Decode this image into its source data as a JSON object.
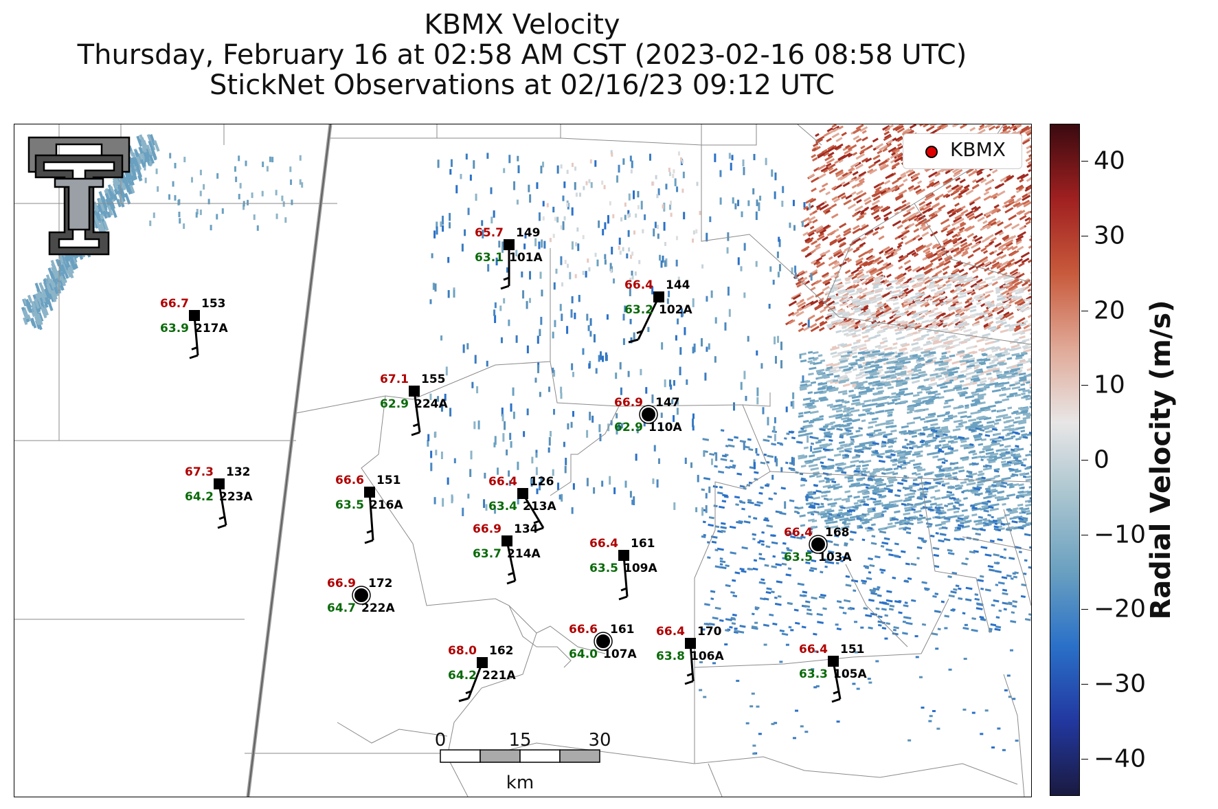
{
  "title": {
    "line1": "KBMX Velocity",
    "line2": "Thursday, February 16 at 02:58 AM CST (2023-02-16 08:58 UTC)",
    "line3": "StickNet Observations at 02/16/23 09:12 UTC"
  },
  "legend": {
    "label": "KBMX",
    "marker_color": "#e00000"
  },
  "logo": {
    "icon": "texas-tech-double-t-logo"
  },
  "colorbar": {
    "title": "Radial Velocity (m/s)",
    "range": [
      -45,
      45
    ],
    "ticks": [
      "40",
      "30",
      "20",
      "10",
      "0",
      "−10",
      "−20",
      "−30",
      "−40"
    ],
    "tick_values": [
      40,
      30,
      20,
      10,
      0,
      -10,
      -20,
      -30,
      -40
    ],
    "colors": [
      "#1a1a40",
      "#2238a0",
      "#2a70c8",
      "#6aa0c0",
      "#a8c4cf",
      "#e8e6e6",
      "#e0a896",
      "#c85a3c",
      "#a02020",
      "#3a0a10"
    ]
  },
  "scale_bar": {
    "labels": [
      "0",
      "15",
      "30"
    ],
    "unit": "km"
  },
  "stations": [
    {
      "id": "101A",
      "temp": "65.7",
      "dew": "63.1",
      "dir": "149",
      "symbol": "square"
    },
    {
      "id": "102A",
      "temp": "66.4",
      "dew": "63.2",
      "dir": "144",
      "symbol": "square"
    },
    {
      "id": "217A",
      "temp": "66.7",
      "dew": "63.9",
      "dir": "153",
      "symbol": "square"
    },
    {
      "id": "224A",
      "temp": "67.1",
      "dew": "62.9",
      "dir": "155",
      "symbol": "square"
    },
    {
      "id": "110A",
      "temp": "66.9",
      "dew": "62.9",
      "dir": "147",
      "symbol": "circle"
    },
    {
      "id": "223A",
      "temp": "67.3",
      "dew": "64.2",
      "dir": "132",
      "symbol": "square"
    },
    {
      "id": "216A",
      "temp": "66.6",
      "dew": "63.5",
      "dir": "151",
      "symbol": "square"
    },
    {
      "id": "213A",
      "temp": "66.4",
      "dew": "63.4",
      "dir": "126",
      "symbol": "square"
    },
    {
      "id": "214A",
      "temp": "66.9",
      "dew": "63.7",
      "dir": "134",
      "symbol": "square"
    },
    {
      "id": "109A",
      "temp": "66.4",
      "dew": "63.5",
      "dir": "161",
      "symbol": "square"
    },
    {
      "id": "103A",
      "temp": "66.4",
      "dew": "63.5",
      "dir": "168",
      "symbol": "circle"
    },
    {
      "id": "222A",
      "temp": "66.9",
      "dew": "64.7",
      "dir": "172",
      "symbol": "circle"
    },
    {
      "id": "107A",
      "temp": "66.6",
      "dew": "64.0",
      "dir": "161",
      "symbol": "circle"
    },
    {
      "id": "106A",
      "temp": "66.4",
      "dew": "63.8",
      "dir": "170",
      "symbol": "square"
    },
    {
      "id": "221A",
      "temp": "68.0",
      "dew": "64.2",
      "dir": "162",
      "symbol": "square"
    },
    {
      "id": "105A",
      "temp": "66.4",
      "dew": "63.3",
      "dir": "151",
      "symbol": "square"
    }
  ]
}
